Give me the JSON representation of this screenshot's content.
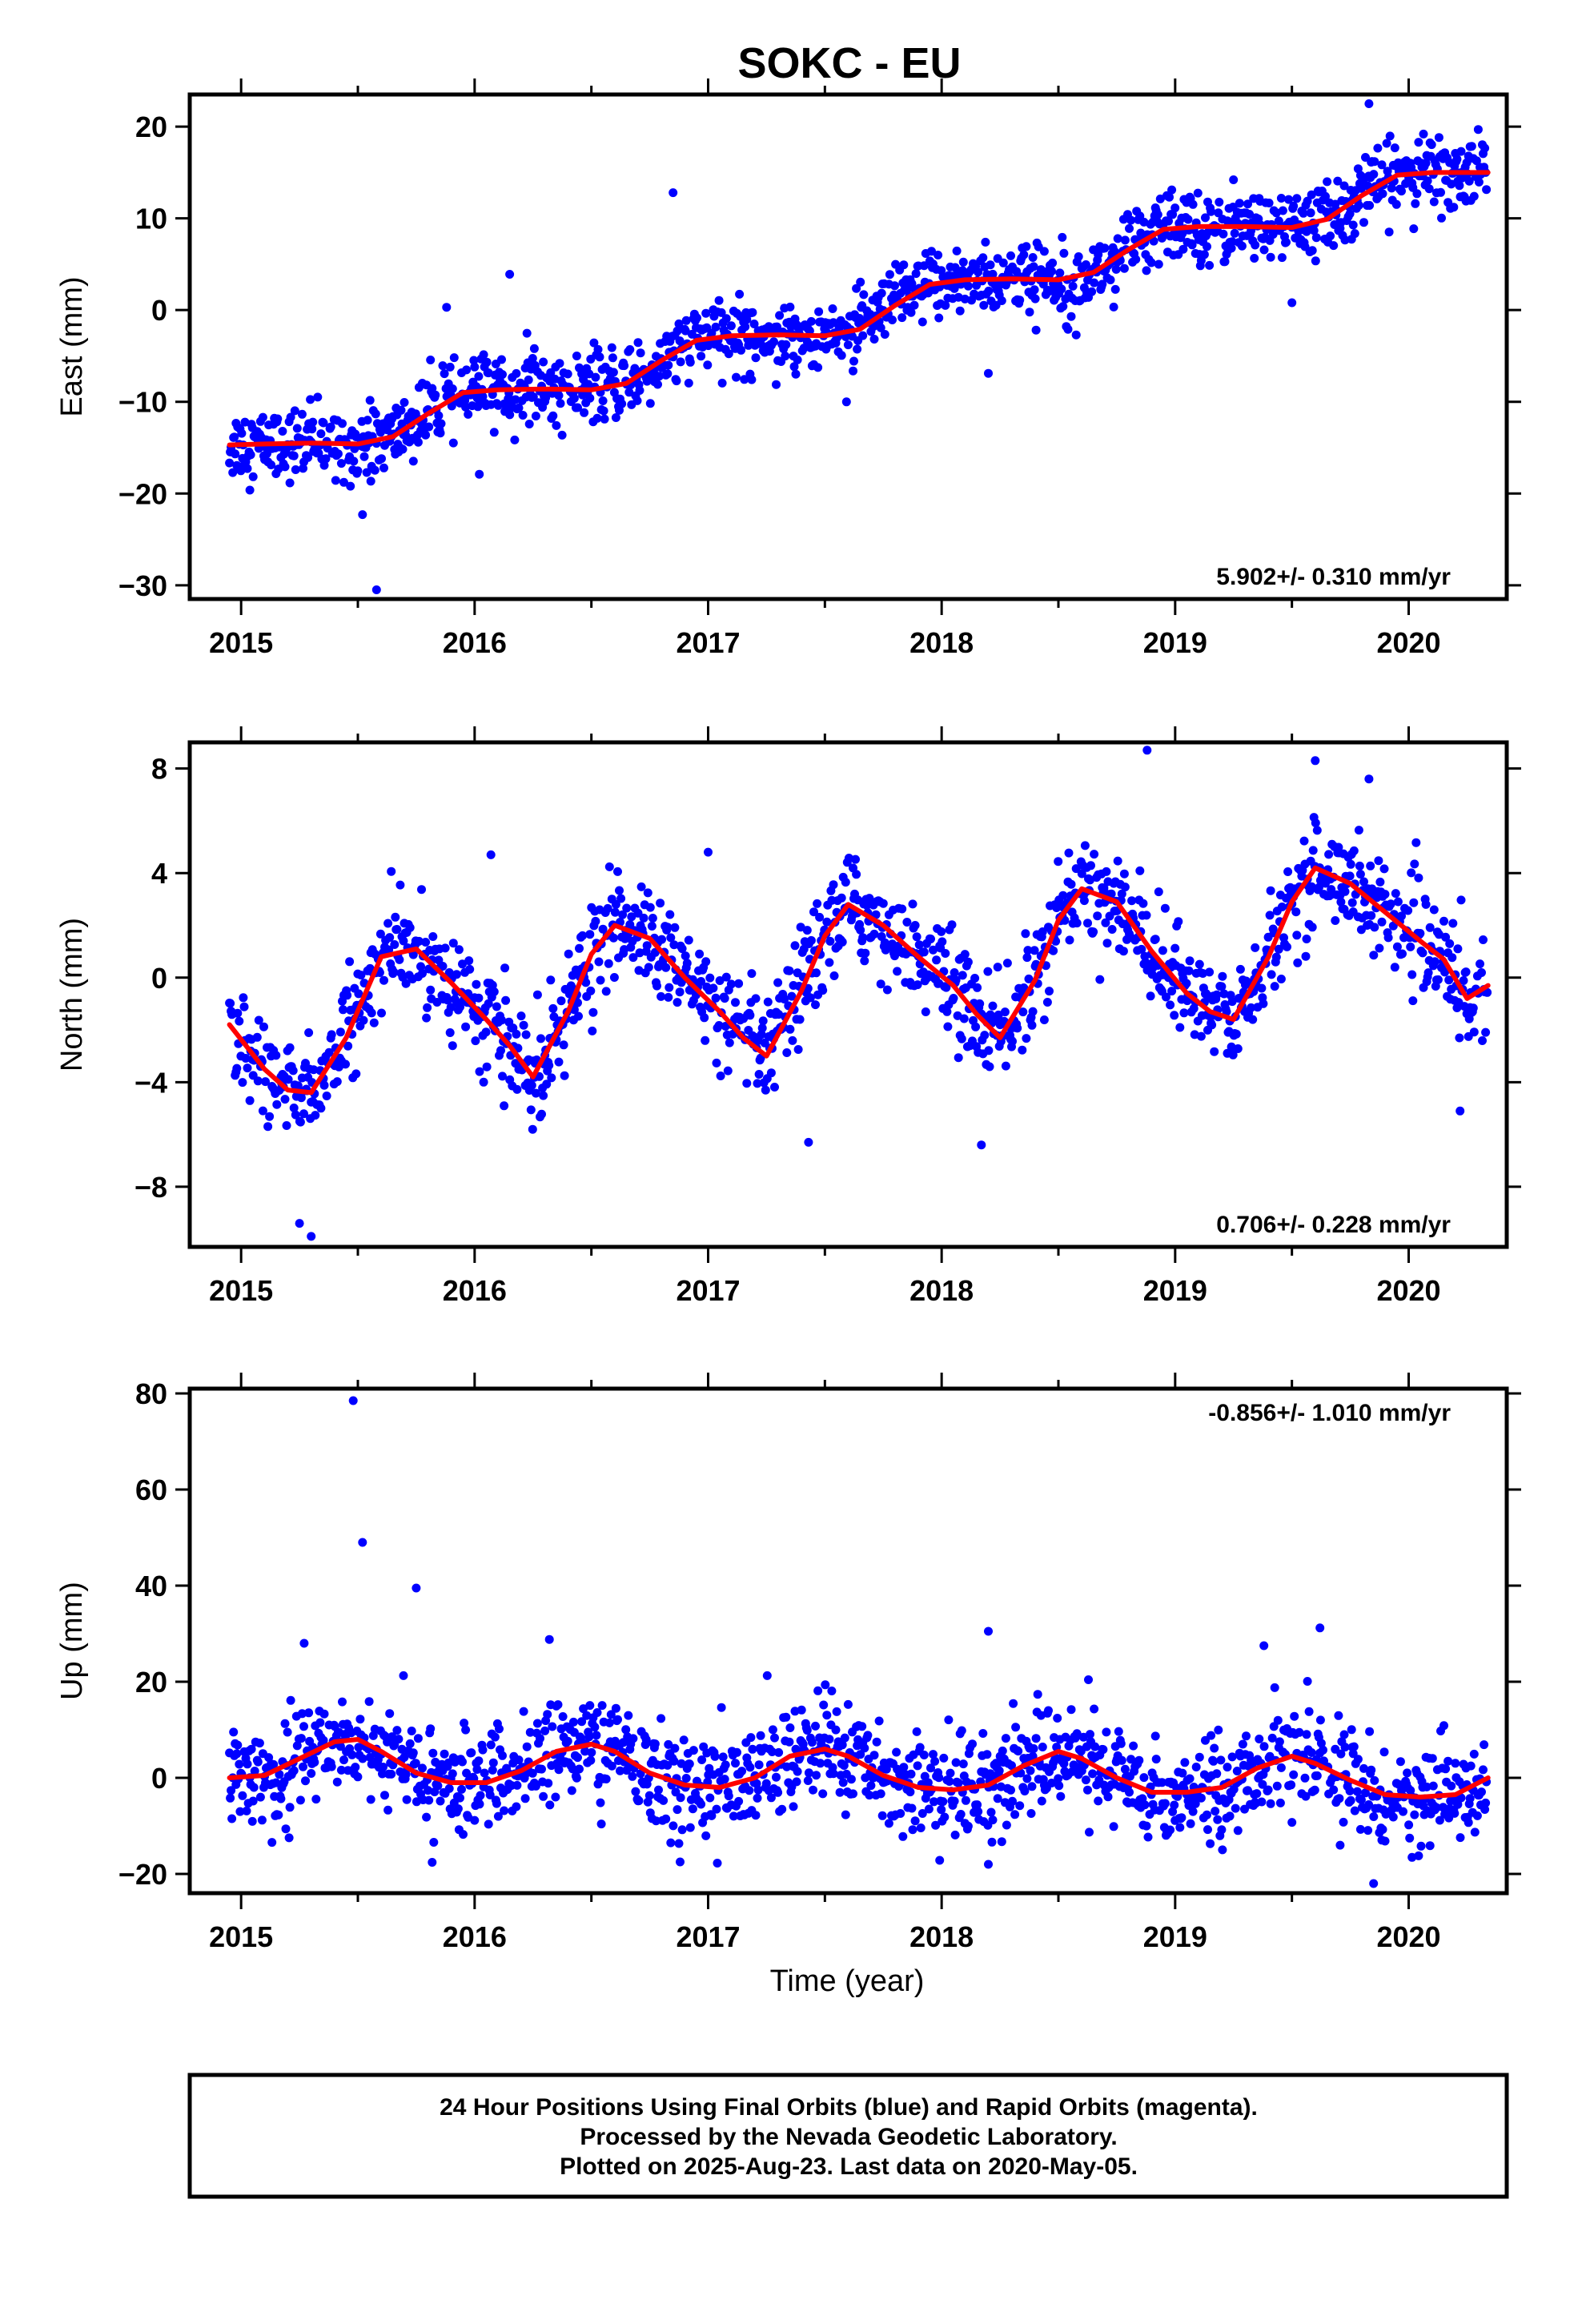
{
  "title": "SOKC - EU",
  "xlabel": "Time (year)",
  "colors": {
    "points": "#0000ff",
    "fit": "#ff0000",
    "frame": "#000000"
  },
  "footer": [
    "24 Hour Positions Using Final Orbits (blue) and Rapid Orbits (magenta).",
    "Processed by the Nevada Geodetic Laboratory.",
    "Plotted on 2025-Aug-23. Last data on 2020-May-05."
  ],
  "chart_data": [
    {
      "type": "scatter",
      "component": "east",
      "ylabel": "East (mm)",
      "rate": "5.902+/- 0.310 mm/yr",
      "rate_position": "bottom-right",
      "xlim": [
        2014.78,
        2020.42
      ],
      "ylim": [
        -31.5,
        23.5
      ],
      "xticks": [
        2015,
        2016,
        2017,
        2018,
        2019,
        2020
      ],
      "yticks": [
        -30,
        -20,
        -10,
        0,
        10,
        20
      ],
      "yticklabels": [
        "−30",
        "−20",
        "−10",
        "0",
        "10",
        "20"
      ],
      "fit_x": [
        2014.95,
        2015.1,
        2015.3,
        2015.5,
        2015.65,
        2015.8,
        2015.95,
        2016.1,
        2016.3,
        2016.5,
        2016.65,
        2016.8,
        2016.95,
        2017.1,
        2017.3,
        2017.5,
        2017.65,
        2017.8,
        2017.95,
        2018.1,
        2018.3,
        2018.5,
        2018.65,
        2018.8,
        2018.95,
        2019.1,
        2019.3,
        2019.5,
        2019.65,
        2019.8,
        2019.95,
        2020.1,
        2020.25,
        2020.34
      ],
      "fit_y": [
        -14.7,
        -14.6,
        -14.5,
        -14.6,
        -13.8,
        -11.3,
        -9.0,
        -8.7,
        -8.6,
        -8.7,
        -8.0,
        -5.5,
        -3.3,
        -2.8,
        -2.7,
        -2.8,
        -2.1,
        0.5,
        2.8,
        3.3,
        3.4,
        3.3,
        4.1,
        6.6,
        8.8,
        9.1,
        9.1,
        9.0,
        9.9,
        12.5,
        14.7,
        15.0,
        15.0,
        15.0
      ],
      "outliers": [
        [
          2015.58,
          -30.5
        ],
        [
          2015.52,
          -22.3
        ],
        [
          2016.85,
          12.8
        ],
        [
          2015.88,
          0.3
        ],
        [
          2019.83,
          22.5
        ],
        [
          2019.25,
          14.2
        ],
        [
          2016.15,
          3.9
        ],
        [
          2019.5,
          0.8
        ],
        [
          2018.2,
          -6.9
        ],
        [
          2016.02,
          -17.9
        ]
      ],
      "noise_sd": 1.9
    },
    {
      "type": "scatter",
      "component": "north",
      "ylabel": "North (mm)",
      "rate": "0.706+/- 0.228 mm/yr",
      "rate_position": "bottom-right",
      "xlim": [
        2014.78,
        2020.42
      ],
      "ylim": [
        -10.3,
        9.0
      ],
      "xticks": [
        2015,
        2016,
        2017,
        2018,
        2019,
        2020
      ],
      "yticks": [
        -8,
        -4,
        0,
        4,
        8
      ],
      "yticklabels": [
        "−8",
        "−4",
        "0",
        "4",
        "8"
      ],
      "fit_x": [
        2014.95,
        2015.1,
        2015.2,
        2015.3,
        2015.45,
        2015.6,
        2015.75,
        2015.9,
        2016.05,
        2016.15,
        2016.25,
        2016.4,
        2016.5,
        2016.6,
        2016.75,
        2016.9,
        2017.05,
        2017.15,
        2017.25,
        2017.4,
        2017.5,
        2017.6,
        2017.75,
        2017.9,
        2018.05,
        2018.15,
        2018.25,
        2018.4,
        2018.5,
        2018.6,
        2018.75,
        2018.9,
        2019.05,
        2019.15,
        2019.25,
        2019.4,
        2019.5,
        2019.6,
        2019.75,
        2019.9,
        2020.05,
        2020.15,
        2020.25,
        2020.34
      ],
      "fit_y": [
        -1.8,
        -3.5,
        -4.3,
        -4.4,
        -2.3,
        0.8,
        1.1,
        -0.2,
        -1.6,
        -2.6,
        -3.8,
        -1.3,
        0.9,
        2.0,
        1.5,
        0.0,
        -1.3,
        -2.3,
        -3.0,
        -0.5,
        1.6,
        2.8,
        2.0,
        0.8,
        -0.3,
        -1.4,
        -2.3,
        -0.1,
        2.2,
        3.4,
        2.9,
        1.0,
        -0.6,
        -1.3,
        -1.6,
        0.8,
        2.9,
        4.2,
        3.6,
        2.5,
        1.4,
        0.7,
        -0.8,
        -0.3
      ],
      "outliers": [
        [
          2015.3,
          -9.9
        ],
        [
          2015.25,
          -9.4
        ],
        [
          2018.88,
          8.7
        ],
        [
          2019.6,
          8.3
        ],
        [
          2019.83,
          7.6
        ],
        [
          2017.43,
          -6.3
        ],
        [
          2018.17,
          -6.4
        ],
        [
          2016.07,
          4.7
        ],
        [
          2017.0,
          4.8
        ],
        [
          2020.22,
          -5.1
        ]
      ],
      "noise_sd": 0.95
    },
    {
      "type": "scatter",
      "component": "up",
      "ylabel": "Up (mm)",
      "rate": "-0.856+/- 1.010 mm/yr",
      "rate_position": "top-right",
      "xlim": [
        2014.78,
        2020.42
      ],
      "ylim": [
        -24,
        81
      ],
      "xticks": [
        2015,
        2016,
        2017,
        2018,
        2019,
        2020
      ],
      "yticks": [
        -20,
        0,
        20,
        40,
        60,
        80
      ],
      "yticklabels": [
        "−20",
        "0",
        "20",
        "40",
        "60",
        "80"
      ],
      "fit_x": [
        2014.95,
        2015.1,
        2015.25,
        2015.4,
        2015.5,
        2015.6,
        2015.75,
        2015.9,
        2016.05,
        2016.2,
        2016.35,
        2016.5,
        2016.6,
        2016.75,
        2016.9,
        2017.05,
        2017.2,
        2017.35,
        2017.5,
        2017.6,
        2017.75,
        2017.9,
        2018.05,
        2018.2,
        2018.35,
        2018.5,
        2018.6,
        2018.75,
        2018.9,
        2019.05,
        2019.2,
        2019.35,
        2019.5,
        2019.6,
        2019.75,
        2019.9,
        2020.05,
        2020.2,
        2020.34
      ],
      "fit_y": [
        0.0,
        0.5,
        4.0,
        7.5,
        8.0,
        5.5,
        1.0,
        -1.0,
        -1.0,
        1.5,
        5.5,
        7.0,
        5.5,
        1.0,
        -1.5,
        -2.0,
        0.0,
        4.5,
        6.0,
        4.5,
        0.5,
        -2.0,
        -2.5,
        -1.5,
        2.5,
        5.5,
        4.0,
        0.0,
        -3.0,
        -3.0,
        -2.0,
        2.0,
        4.5,
        3.0,
        -0.5,
        -3.5,
        -4.0,
        -3.5,
        0.0
      ],
      "outliers": [
        [
          2015.48,
          78.5
        ],
        [
          2015.52,
          49.0
        ],
        [
          2015.75,
          39.5
        ],
        [
          2016.32,
          28.8
        ],
        [
          2015.27,
          28.0
        ],
        [
          2018.2,
          30.5
        ],
        [
          2019.62,
          31.2
        ],
        [
          2019.38,
          27.5
        ],
        [
          2019.85,
          -22.0
        ],
        [
          2018.2,
          -18.0
        ],
        [
          2016.88,
          -17.5
        ]
      ],
      "noise_sd": 5.2
    }
  ]
}
